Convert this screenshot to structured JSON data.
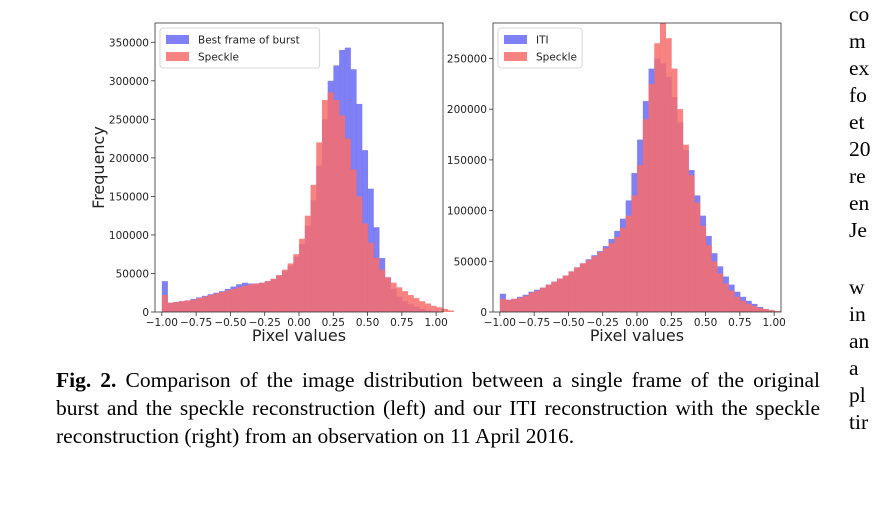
{
  "chart_data": [
    {
      "type": "histogram",
      "xlabel": "Pixel values",
      "ylabel": "Frequency",
      "xlim": [
        -1.05,
        1.05
      ],
      "ylim": [
        0,
        375000
      ],
      "xticks": [
        "-1.00",
        "-0.75",
        "-0.50",
        "-0.25",
        "0.00",
        "0.25",
        "0.50",
        "0.75",
        "1.00"
      ],
      "yticks": [
        "0",
        "50000",
        "100000",
        "150000",
        "200000",
        "250000",
        "300000",
        "350000"
      ],
      "legend_position": "top-left",
      "bin_edges_start": -1.0,
      "bin_width": 0.0417,
      "series": [
        {
          "name": "Best frame of burst",
          "color": "#6a6af4",
          "values": [
            40000,
            12000,
            13000,
            14000,
            15000,
            17000,
            19000,
            21000,
            23000,
            25000,
            27000,
            30000,
            33000,
            36000,
            38000,
            37000,
            37000,
            38000,
            40000,
            43000,
            47000,
            53000,
            60000,
            72000,
            88000,
            112000,
            145000,
            190000,
            250000,
            300000,
            320000,
            340000,
            343000,
            315000,
            270000,
            210000,
            160000,
            110000,
            70000,
            45000,
            30000,
            20000,
            14000,
            10000,
            7000,
            4000,
            2000,
            1000,
            0,
            0,
            0
          ]
        },
        {
          "name": "Speckle",
          "color": "#f76d6d",
          "values": [
            22000,
            12000,
            13000,
            14000,
            15000,
            16000,
            18000,
            20000,
            22000,
            24000,
            26000,
            28000,
            30000,
            32000,
            34000,
            36000,
            37000,
            38000,
            40000,
            43000,
            48000,
            55000,
            63000,
            75000,
            95000,
            125000,
            165000,
            220000,
            275000,
            285000,
            275000,
            255000,
            225000,
            185000,
            150000,
            115000,
            90000,
            70000,
            55000,
            45000,
            38000,
            32000,
            27000,
            22000,
            18000,
            14000,
            11000,
            8000,
            6000,
            4000,
            2000
          ]
        }
      ]
    },
    {
      "type": "histogram",
      "xlabel": "Pixel values",
      "ylabel": "",
      "xlim": [
        -1.05,
        1.05
      ],
      "ylim": [
        0,
        285000
      ],
      "xticks": [
        "-1.00",
        "-0.75",
        "-0.50",
        "-0.25",
        "0.00",
        "0.25",
        "0.50",
        "0.75",
        "1.00"
      ],
      "yticks": [
        "0",
        "50000",
        "100000",
        "150000",
        "200000",
        "250000"
      ],
      "legend_position": "top-left",
      "bin_edges_start": -1.0,
      "bin_width": 0.0417,
      "series": [
        {
          "name": "ITI",
          "color": "#6a6af4",
          "values": [
            18000,
            12000,
            13000,
            15000,
            17000,
            20000,
            22000,
            24000,
            27000,
            30000,
            33000,
            36000,
            40000,
            44000,
            48000,
            52000,
            56000,
            60000,
            65000,
            72000,
            80000,
            92000,
            110000,
            137000,
            170000,
            208000,
            240000,
            250000,
            245000,
            232000,
            212000,
            187000,
            160000,
            140000,
            115000,
            95000,
            75000,
            58000,
            45000,
            35000,
            27000,
            20000,
            15000,
            11000,
            8000,
            5000,
            3000,
            1000,
            0,
            0,
            0
          ]
        },
        {
          "name": "Speckle",
          "color": "#f76d6d",
          "values": [
            13000,
            12000,
            13000,
            14000,
            16000,
            19000,
            21000,
            24000,
            27000,
            30000,
            33000,
            36000,
            40000,
            44000,
            48000,
            51000,
            55000,
            59000,
            63000,
            68000,
            74000,
            83000,
            95000,
            115000,
            145000,
            190000,
            225000,
            265000,
            285000,
            270000,
            240000,
            200000,
            165000,
            135000,
            108000,
            85000,
            66000,
            50000,
            38000,
            28000,
            21000,
            15000,
            11000,
            8000,
            6000,
            4000,
            3000,
            2000,
            1000,
            0,
            0
          ]
        }
      ]
    }
  ],
  "caption": {
    "label": "Fig. 2.",
    "text": "Comparison of the image distribution between a single frame of the original burst and the speckle reconstruction (left) and our ITI reconstruction with the speckle reconstruction (right) from an observation on 11 April 2016."
  },
  "side_text": [
    "co",
    "m",
    "ex",
    "fo",
    "et",
    "20",
    "re",
    "en",
    "Je",
    "w",
    "in",
    "an",
    "a",
    "pl",
    "tir"
  ]
}
